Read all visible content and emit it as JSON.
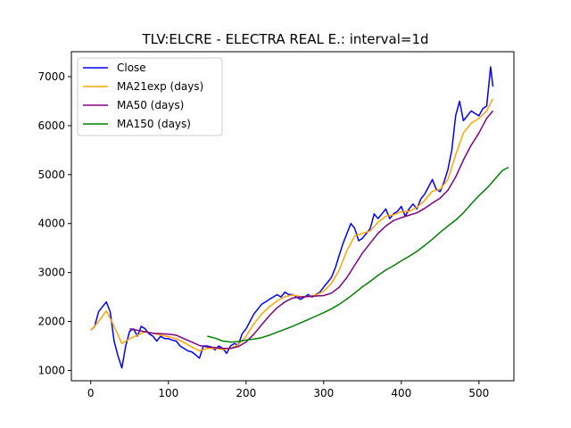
{
  "chart_data": {
    "type": "line",
    "title": "TLV:ELCRE - ELECTRA REAL E.: interval=1d",
    "xlabel": "",
    "ylabel": "",
    "xlim": [
      -25,
      545
    ],
    "ylim": [
      790,
      7510
    ],
    "xticks": [
      0,
      100,
      200,
      300,
      400,
      500
    ],
    "yticks": [
      1000,
      2000,
      3000,
      4000,
      5000,
      6000,
      7000
    ],
    "grid": false,
    "legend_position": "top-left",
    "series": [
      {
        "name": "Close",
        "color": "#0000ff",
        "points": [
          [
            0,
            1820
          ],
          [
            5,
            1900
          ],
          [
            10,
            2200
          ],
          [
            15,
            2300
          ],
          [
            20,
            2400
          ],
          [
            25,
            2200
          ],
          [
            30,
            1600
          ],
          [
            35,
            1300
          ],
          [
            40,
            1050
          ],
          [
            45,
            1500
          ],
          [
            50,
            1800
          ],
          [
            55,
            1850
          ],
          [
            60,
            1700
          ],
          [
            65,
            1900
          ],
          [
            70,
            1850
          ],
          [
            75,
            1750
          ],
          [
            80,
            1700
          ],
          [
            85,
            1600
          ],
          [
            90,
            1700
          ],
          [
            95,
            1650
          ],
          [
            100,
            1650
          ],
          [
            105,
            1620
          ],
          [
            110,
            1600
          ],
          [
            115,
            1500
          ],
          [
            120,
            1450
          ],
          [
            125,
            1400
          ],
          [
            130,
            1380
          ],
          [
            135,
            1320
          ],
          [
            140,
            1250
          ],
          [
            145,
            1500
          ],
          [
            150,
            1500
          ],
          [
            155,
            1480
          ],
          [
            160,
            1420
          ],
          [
            165,
            1500
          ],
          [
            170,
            1450
          ],
          [
            175,
            1350
          ],
          [
            180,
            1500
          ],
          [
            185,
            1550
          ],
          [
            190,
            1520
          ],
          [
            195,
            1750
          ],
          [
            200,
            1850
          ],
          [
            205,
            2000
          ],
          [
            210,
            2150
          ],
          [
            215,
            2250
          ],
          [
            220,
            2350
          ],
          [
            225,
            2400
          ],
          [
            230,
            2450
          ],
          [
            235,
            2500
          ],
          [
            240,
            2550
          ],
          [
            245,
            2500
          ],
          [
            250,
            2600
          ],
          [
            255,
            2550
          ],
          [
            260,
            2550
          ],
          [
            265,
            2500
          ],
          [
            270,
            2450
          ],
          [
            275,
            2500
          ],
          [
            280,
            2550
          ],
          [
            285,
            2500
          ],
          [
            290,
            2550
          ],
          [
            295,
            2600
          ],
          [
            300,
            2700
          ],
          [
            305,
            2800
          ],
          [
            310,
            2900
          ],
          [
            315,
            3100
          ],
          [
            320,
            3350
          ],
          [
            325,
            3600
          ],
          [
            330,
            3800
          ],
          [
            335,
            4000
          ],
          [
            340,
            3900
          ],
          [
            345,
            3650
          ],
          [
            350,
            3700
          ],
          [
            355,
            3800
          ],
          [
            360,
            3900
          ],
          [
            365,
            4200
          ],
          [
            370,
            4100
          ],
          [
            375,
            4200
          ],
          [
            380,
            4300
          ],
          [
            385,
            4100
          ],
          [
            390,
            4200
          ],
          [
            395,
            4250
          ],
          [
            400,
            4350
          ],
          [
            405,
            4150
          ],
          [
            410,
            4300
          ],
          [
            415,
            4400
          ],
          [
            420,
            4300
          ],
          [
            425,
            4500
          ],
          [
            430,
            4600
          ],
          [
            435,
            4750
          ],
          [
            440,
            4900
          ],
          [
            445,
            4700
          ],
          [
            450,
            4650
          ],
          [
            455,
            4850
          ],
          [
            460,
            5100
          ],
          [
            465,
            5500
          ],
          [
            470,
            6200
          ],
          [
            475,
            6500
          ],
          [
            480,
            6100
          ],
          [
            485,
            6200
          ],
          [
            490,
            6300
          ],
          [
            495,
            6250
          ],
          [
            500,
            6200
          ],
          [
            505,
            6350
          ],
          [
            510,
            6400
          ],
          [
            515,
            7200
          ],
          [
            518,
            6800
          ]
        ]
      },
      {
        "name": "MA21exp (days)",
        "color": "#ffa500",
        "points": [
          [
            0,
            1820
          ],
          [
            10,
            2000
          ],
          [
            20,
            2220
          ],
          [
            30,
            1900
          ],
          [
            40,
            1550
          ],
          [
            50,
            1650
          ],
          [
            60,
            1720
          ],
          [
            70,
            1790
          ],
          [
            80,
            1760
          ],
          [
            90,
            1720
          ],
          [
            100,
            1690
          ],
          [
            110,
            1650
          ],
          [
            120,
            1570
          ],
          [
            130,
            1480
          ],
          [
            140,
            1400
          ],
          [
            150,
            1450
          ],
          [
            160,
            1450
          ],
          [
            170,
            1430
          ],
          [
            180,
            1450
          ],
          [
            190,
            1530
          ],
          [
            200,
            1700
          ],
          [
            210,
            1950
          ],
          [
            220,
            2150
          ],
          [
            230,
            2300
          ],
          [
            240,
            2420
          ],
          [
            250,
            2510
          ],
          [
            260,
            2540
          ],
          [
            270,
            2510
          ],
          [
            280,
            2510
          ],
          [
            290,
            2540
          ],
          [
            300,
            2620
          ],
          [
            310,
            2780
          ],
          [
            320,
            3050
          ],
          [
            330,
            3450
          ],
          [
            340,
            3750
          ],
          [
            350,
            3800
          ],
          [
            360,
            3850
          ],
          [
            370,
            4030
          ],
          [
            380,
            4150
          ],
          [
            390,
            4180
          ],
          [
            400,
            4240
          ],
          [
            410,
            4250
          ],
          [
            420,
            4330
          ],
          [
            430,
            4470
          ],
          [
            440,
            4660
          ],
          [
            450,
            4700
          ],
          [
            460,
            4900
          ],
          [
            470,
            5400
          ],
          [
            480,
            5850
          ],
          [
            490,
            6050
          ],
          [
            500,
            6150
          ],
          [
            510,
            6300
          ],
          [
            518,
            6550
          ]
        ]
      },
      {
        "name": "MA50 (days)",
        "color": "#800080",
        "points": [
          [
            50,
            1850
          ],
          [
            60,
            1820
          ],
          [
            70,
            1790
          ],
          [
            80,
            1760
          ],
          [
            90,
            1750
          ],
          [
            100,
            1740
          ],
          [
            110,
            1720
          ],
          [
            120,
            1650
          ],
          [
            130,
            1580
          ],
          [
            140,
            1510
          ],
          [
            150,
            1480
          ],
          [
            160,
            1470
          ],
          [
            170,
            1450
          ],
          [
            180,
            1450
          ],
          [
            190,
            1490
          ],
          [
            200,
            1580
          ],
          [
            210,
            1740
          ],
          [
            220,
            1930
          ],
          [
            230,
            2120
          ],
          [
            240,
            2280
          ],
          [
            250,
            2400
          ],
          [
            260,
            2480
          ],
          [
            270,
            2500
          ],
          [
            280,
            2510
          ],
          [
            290,
            2520
          ],
          [
            300,
            2530
          ],
          [
            310,
            2580
          ],
          [
            320,
            2700
          ],
          [
            330,
            2900
          ],
          [
            340,
            3150
          ],
          [
            350,
            3400
          ],
          [
            360,
            3600
          ],
          [
            370,
            3800
          ],
          [
            380,
            3950
          ],
          [
            390,
            4060
          ],
          [
            400,
            4120
          ],
          [
            410,
            4170
          ],
          [
            420,
            4220
          ],
          [
            430,
            4310
          ],
          [
            440,
            4420
          ],
          [
            450,
            4520
          ],
          [
            460,
            4680
          ],
          [
            470,
            4950
          ],
          [
            480,
            5300
          ],
          [
            490,
            5600
          ],
          [
            500,
            5850
          ],
          [
            510,
            6150
          ],
          [
            518,
            6300
          ]
        ]
      },
      {
        "name": "MA150 (days)",
        "color": "#008000",
        "points": [
          [
            150,
            1700
          ],
          [
            160,
            1660
          ],
          [
            170,
            1600
          ],
          [
            180,
            1580
          ],
          [
            190,
            1590
          ],
          [
            200,
            1620
          ],
          [
            210,
            1640
          ],
          [
            220,
            1670
          ],
          [
            230,
            1720
          ],
          [
            240,
            1780
          ],
          [
            250,
            1840
          ],
          [
            260,
            1900
          ],
          [
            270,
            1970
          ],
          [
            280,
            2040
          ],
          [
            290,
            2110
          ],
          [
            300,
            2180
          ],
          [
            310,
            2260
          ],
          [
            320,
            2350
          ],
          [
            330,
            2460
          ],
          [
            340,
            2580
          ],
          [
            350,
            2710
          ],
          [
            360,
            2820
          ],
          [
            370,
            2940
          ],
          [
            380,
            3050
          ],
          [
            390,
            3140
          ],
          [
            400,
            3240
          ],
          [
            410,
            3330
          ],
          [
            420,
            3430
          ],
          [
            430,
            3550
          ],
          [
            440,
            3680
          ],
          [
            450,
            3820
          ],
          [
            460,
            3950
          ],
          [
            470,
            4070
          ],
          [
            480,
            4220
          ],
          [
            490,
            4400
          ],
          [
            500,
            4570
          ],
          [
            510,
            4720
          ],
          [
            518,
            4860
          ],
          [
            530,
            5080
          ],
          [
            538,
            5150
          ]
        ]
      }
    ]
  }
}
